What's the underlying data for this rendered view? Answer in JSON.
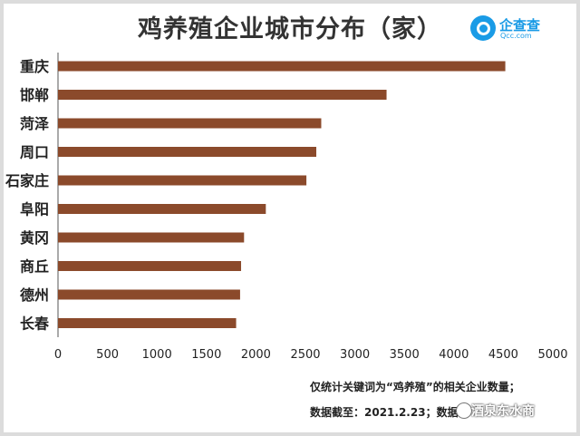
{
  "title": "鸡养殖企业城市分布（家）",
  "logo": {
    "name": "企查查",
    "sub": "Qcc.com"
  },
  "footnote_line1": "仅统计关键词为“鸡养殖”的相关企业数量；",
  "footnote_line2": "数据截至：2021.2.23；数据来",
  "watermark": "酒泉东水商",
  "colors": {
    "bar": "#8b4a2b",
    "axis": "#555555",
    "text": "#222222"
  },
  "chart_data": {
    "type": "bar",
    "orientation": "horizontal",
    "title": "鸡养殖企业城市分布（家）",
    "categories": [
      "重庆",
      "邯郸",
      "菏泽",
      "周口",
      "石家庄",
      "阜阳",
      "黄冈",
      "商丘",
      "德州",
      "长春"
    ],
    "values": [
      4520,
      3320,
      2660,
      2610,
      2510,
      2100,
      1880,
      1850,
      1840,
      1800
    ],
    "xlim": [
      0,
      5000
    ],
    "xticks": [
      "0",
      "500",
      "1000",
      "1500",
      "2000",
      "2500",
      "3000",
      "3500",
      "4000",
      "4500",
      "5000"
    ],
    "grid": false,
    "legend": "none"
  }
}
